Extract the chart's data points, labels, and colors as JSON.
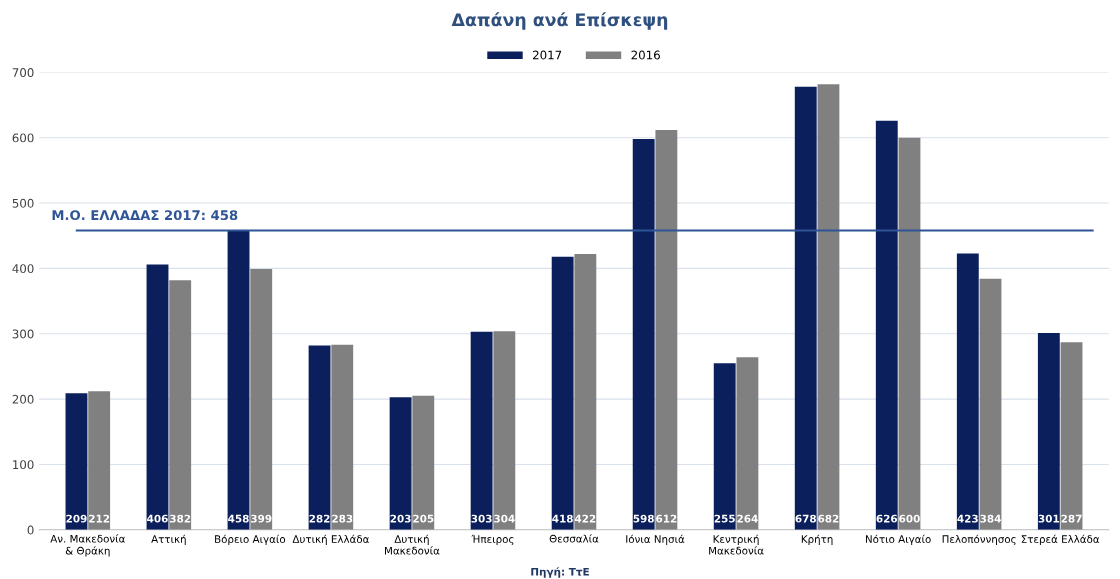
{
  "chart_data": {
    "type": "bar",
    "title": "Δαπάνη ανά Επίσκεψη",
    "categories": [
      "Αν. Μακεδονία\n& Θράκη",
      "Αττική",
      "Βόρειο Αιγαίο",
      "Δυτική Ελλάδα",
      "Δυτική\nΜακεδονία",
      "Ήπειρος",
      "Θεσσαλία",
      "Ιόνια Νησιά",
      "Κεντρική\nΜακεδονία",
      "Κρήτη",
      "Νότιο Αιγαίο",
      "Πελοπόννησος",
      "Στερεά Ελλάδα"
    ],
    "series": [
      {
        "name": "2017",
        "color": "#0b1f5c",
        "values": [
          209,
          406,
          458,
          282,
          203,
          303,
          418,
          598,
          255,
          678,
          626,
          423,
          301
        ]
      },
      {
        "name": "2016",
        "color": "#808080",
        "values": [
          212,
          382,
          399,
          283,
          205,
          304,
          422,
          612,
          264,
          682,
          600,
          384,
          287
        ]
      }
    ],
    "ylim": [
      0,
      700
    ],
    "yticks": [
      0,
      100,
      200,
      300,
      400,
      500,
      600,
      700
    ],
    "grid": "y",
    "legend": "top",
    "data_labels": true,
    "ref_lines": [
      {
        "axis": "y",
        "value": 458,
        "label": "Μ.Ο. ΕΛΛΑΔΑΣ 2017: 458",
        "color": "#2f5597"
      }
    ],
    "annotations": [
      "Πηγή: ΤτΕ"
    ]
  }
}
